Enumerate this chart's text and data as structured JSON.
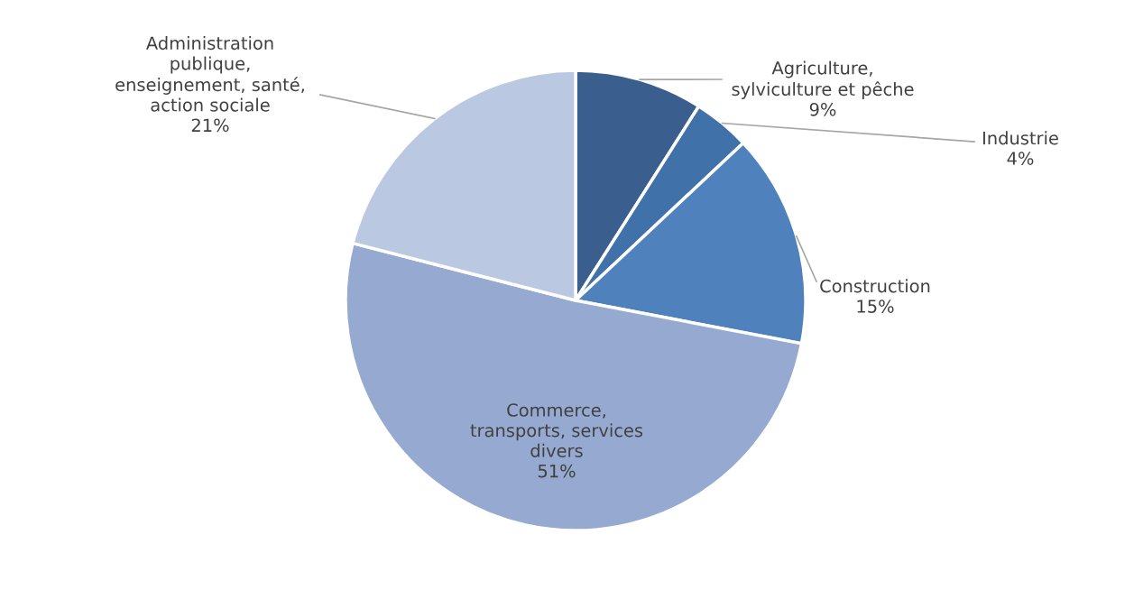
{
  "chart_data": {
    "type": "pie",
    "categories": [
      "Agriculture,\nsylviculture et pêche",
      "Industrie",
      "Construction",
      "Commerce,\ntransports, services\ndivers",
      "Administration\npublique,\nenseignement, santé,\naction sociale"
    ],
    "values": [
      9,
      4,
      15,
      51,
      21
    ],
    "value_labels": [
      "9%",
      "4%",
      "15%",
      "51%",
      "21%"
    ],
    "colors": [
      "#3a5f8f",
      "#4171a9",
      "#4f81bd",
      "#95a9d1",
      "#bac8e1"
    ]
  }
}
